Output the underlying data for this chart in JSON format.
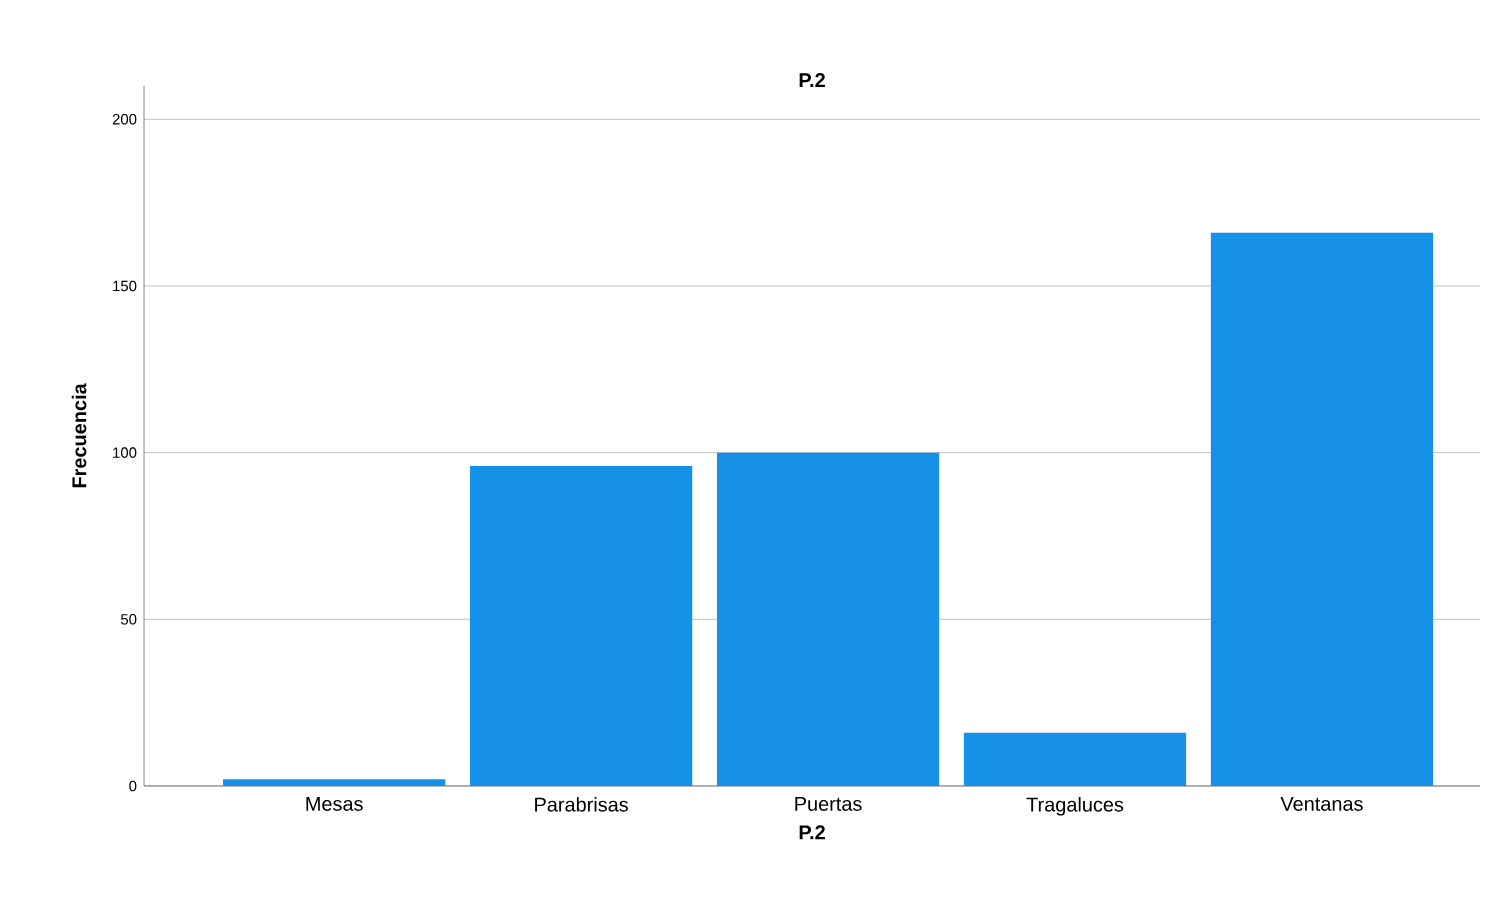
{
  "chart_data": {
    "type": "bar",
    "title": "P.2",
    "xlabel": "P.2",
    "ylabel": "Frecuencia",
    "categories": [
      "Mesas",
      "Parabrisas",
      "Puertas",
      "Tragaluces",
      "Ventanas"
    ],
    "values": [
      2,
      96,
      100,
      16,
      166
    ],
    "color": "#1591e8",
    "ylim": [
      0,
      210
    ],
    "yticks": [
      0,
      50,
      100,
      150,
      200
    ],
    "grid": "y"
  }
}
